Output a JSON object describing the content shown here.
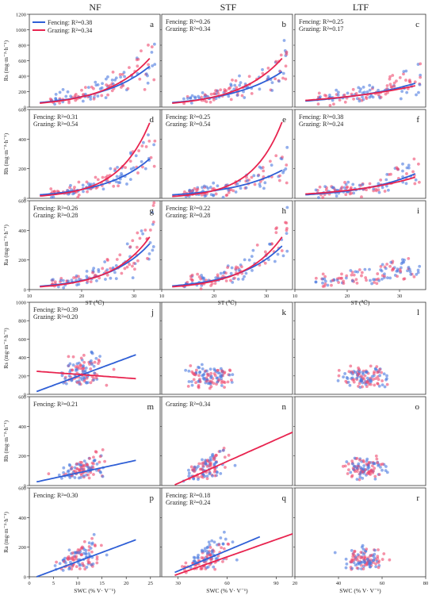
{
  "chart_data": {
    "type": "scatter",
    "colors": {
      "Fencing": "#2f5fd6",
      "Grazing": "#e8244f",
      "dot_fencing": "#4a78e0",
      "dot_grazing": "#ef4a6e"
    },
    "column_titles": [
      "NF",
      "STF",
      "LTF"
    ],
    "row_ylabels": [
      "Rs (mg·m⁻²·h⁻¹)",
      "Rh (mg·m⁻²·h⁻¹)",
      "Ra (mg·m⁻²·h⁻¹)",
      "Rs (mg·m⁻²·h⁻¹)",
      "Rh (mg·m⁻²·h⁻¹)",
      "Ra (mg·m⁻²·h⁻¹)"
    ],
    "xlabels": {
      "st": "ST (℃)",
      "swc": "SWC (% V· V⁻¹)"
    },
    "yticks": {
      "rs": [
        "0",
        "200",
        "400",
        "600",
        "800",
        "1000",
        "1200"
      ],
      "r6": [
        "0",
        "200",
        "400",
        "600"
      ]
    },
    "xticks": {
      "st": [
        "10",
        "20",
        "30"
      ],
      "nf_swc": [
        "0",
        "5",
        "10",
        "15",
        "20",
        "25"
      ],
      "stf_swc": [
        "30",
        "60",
        "90"
      ],
      "ltf_swc": [
        "20",
        "40",
        "60",
        "80"
      ]
    },
    "legend": [
      {
        "name": "Fencing",
        "label": "Fencing:  R²=0.38"
      },
      {
        "name": "Grazing",
        "label": "Grazing:  R²=0.34"
      }
    ],
    "panels": [
      {
        "letter": "a",
        "xkey": "st",
        "xlim": [
          10,
          35
        ],
        "ylim": [
          0,
          1200
        ],
        "ann": [],
        "fit_f": {
          "type": "exp",
          "a": 16.5,
          "b": 0.105,
          "x0": 12,
          "x1": 33
        },
        "fit_g": {
          "type": "exp",
          "a": 12,
          "b": 0.12,
          "x0": 12,
          "x1": 33
        }
      },
      {
        "letter": "b",
        "xkey": "st",
        "xlim": [
          10,
          35
        ],
        "ylim": [
          0,
          1200
        ],
        "ann": [
          "Fencing:  R²=0.26",
          "Grazing:  R²=0.34"
        ],
        "fit_f": {
          "type": "exp",
          "a": 18,
          "b": 0.098,
          "x0": 12,
          "x1": 33
        },
        "fit_g": {
          "type": "exp",
          "a": 12,
          "b": 0.12,
          "x0": 12,
          "x1": 33
        }
      },
      {
        "letter": "c",
        "xkey": "st",
        "xlim": [
          10,
          35
        ],
        "ylim": [
          0,
          1200
        ],
        "ann": [
          "Fencing:  R²=0.25",
          "Grazing:  R²=0.17"
        ],
        "fit_f": {
          "type": "exp",
          "a": 36,
          "b": 0.065,
          "x0": 12,
          "x1": 33
        },
        "fit_g": {
          "type": "exp",
          "a": 45,
          "b": 0.055,
          "x0": 12,
          "x1": 33
        }
      },
      {
        "letter": "d",
        "xkey": "st",
        "xlim": [
          10,
          35
        ],
        "ylim": [
          0,
          600
        ],
        "ann": [
          "Fencing:  R²=0.31",
          "Grazing:  R²=0.54"
        ],
        "fit_f": {
          "type": "exp",
          "a": 6,
          "b": 0.115,
          "x0": 12,
          "x1": 33
        },
        "fit_g": {
          "type": "exp",
          "a": 2.2,
          "b": 0.165,
          "x0": 12,
          "x1": 33
        }
      },
      {
        "letter": "e",
        "xkey": "st",
        "xlim": [
          10,
          35
        ],
        "ylim": [
          0,
          600
        ],
        "ann": [
          "Fencing:  R²=0.25",
          "Grazing:  R²=0.54"
        ],
        "fit_f": {
          "type": "exp",
          "a": 7,
          "b": 0.1,
          "x0": 12,
          "x1": 33
        },
        "fit_g": {
          "type": "exp",
          "a": 1.6,
          "b": 0.175,
          "x0": 12,
          "x1": 33
        }
      },
      {
        "letter": "f",
        "xkey": "st",
        "xlim": [
          10,
          35
        ],
        "ylim": [
          0,
          600
        ],
        "ann": [
          "Fencing:  R²=0.38",
          "Grazing:  R²=0.24"
        ],
        "fit_f": {
          "type": "exp",
          "a": 8,
          "b": 0.092,
          "x0": 12,
          "x1": 33
        },
        "fit_g": {
          "type": "exp",
          "a": 12,
          "b": 0.075,
          "x0": 12,
          "x1": 33
        }
      },
      {
        "letter": "g",
        "xkey": "st",
        "xlim": [
          10,
          35
        ],
        "ylim": [
          0,
          600
        ],
        "ann": [
          "Fencing:  R²=0.26",
          "Grazing:  R²=0.28"
        ],
        "fit_f": {
          "type": "exp",
          "a": 5,
          "b": 0.125,
          "x0": 12,
          "x1": 33
        },
        "fit_g": {
          "type": "exp",
          "a": 3.5,
          "b": 0.14,
          "x0": 12,
          "x1": 33
        }
      },
      {
        "letter": "h",
        "xkey": "st",
        "xlim": [
          10,
          35
        ],
        "ylim": [
          0,
          600
        ],
        "ann": [
          "Fencing:  R²=0.22",
          "Grazing:  R²=0.28"
        ],
        "fit_f": {
          "type": "exp",
          "a": 6,
          "b": 0.118,
          "x0": 12,
          "x1": 33
        },
        "fit_g": {
          "type": "exp",
          "a": 3.5,
          "b": 0.14,
          "x0": 12,
          "x1": 33
        }
      },
      {
        "letter": "i",
        "xkey": "st",
        "xlim": [
          10,
          35
        ],
        "ylim": [
          0,
          600
        ],
        "ann": [],
        "fit_f": null,
        "fit_g": null
      },
      {
        "letter": "j",
        "xkey": "nf_swc",
        "xlim": [
          0,
          27
        ],
        "ylim": [
          0,
          1000
        ],
        "ann": [
          "Fencing:  R²=0.39",
          "Grazing:  R²=0.20"
        ],
        "fit_f": {
          "type": "lin",
          "x0": 1.5,
          "y0": 30,
          "x1": 22,
          "y1": 430
        },
        "fit_g": {
          "type": "lin",
          "x0": 1.5,
          "y0": 250,
          "x1": 22,
          "y1": 170
        }
      },
      {
        "letter": "k",
        "xkey": "stf_swc",
        "xlim": [
          20,
          100
        ],
        "ylim": [
          0,
          1000
        ],
        "ann": [],
        "fit_f": null,
        "fit_g": null
      },
      {
        "letter": "l",
        "xkey": "ltf_swc",
        "xlim": [
          20,
          80
        ],
        "ylim": [
          0,
          1000
        ],
        "ann": [],
        "fit_f": null,
        "fit_g": null
      },
      {
        "letter": "m",
        "xkey": "nf_swc",
        "xlim": [
          0,
          27
        ],
        "ylim": [
          0,
          600
        ],
        "ann": [
          "Fencing:  R²=0.21"
        ],
        "fit_f": {
          "type": "lin",
          "x0": 1.5,
          "y0": 25,
          "x1": 22,
          "y1": 170
        },
        "fit_g": null
      },
      {
        "letter": "n",
        "xkey": "stf_swc",
        "xlim": [
          20,
          100
        ],
        "ylim": [
          0,
          600
        ],
        "ann": [
          "Grazing:  R²=0.34"
        ],
        "fit_f": null,
        "fit_g": {
          "type": "lin",
          "x0": 28,
          "y0": 5,
          "x1": 100,
          "y1": 360
        }
      },
      {
        "letter": "o",
        "xkey": "ltf_swc",
        "xlim": [
          20,
          80
        ],
        "ylim": [
          0,
          600
        ],
        "ann": [],
        "fit_f": null,
        "fit_g": null
      },
      {
        "letter": "p",
        "xkey": "nf_swc",
        "xlim": [
          0,
          27
        ],
        "ylim": [
          0,
          600
        ],
        "ann": [
          "Fencing:  R²=0.30"
        ],
        "fit_f": {
          "type": "lin",
          "x0": 1.5,
          "y0": 0,
          "x1": 22,
          "y1": 250
        },
        "fit_g": null
      },
      {
        "letter": "q",
        "xkey": "stf_swc",
        "xlim": [
          20,
          100
        ],
        "ylim": [
          0,
          600
        ],
        "ann": [
          "Fencing:  R²=0.18",
          "Grazing:  R²=0.24"
        ],
        "fit_f": {
          "type": "lin",
          "x0": 28,
          "y0": 30,
          "x1": 80,
          "y1": 270
        },
        "fit_g": {
          "type": "lin",
          "x0": 28,
          "y0": 10,
          "x1": 100,
          "y1": 290
        }
      },
      {
        "letter": "r",
        "xkey": "ltf_swc",
        "xlim": [
          20,
          80
        ],
        "ylim": [
          0,
          600
        ],
        "ann": [],
        "fit_f": null,
        "fit_g": null
      }
    ]
  }
}
